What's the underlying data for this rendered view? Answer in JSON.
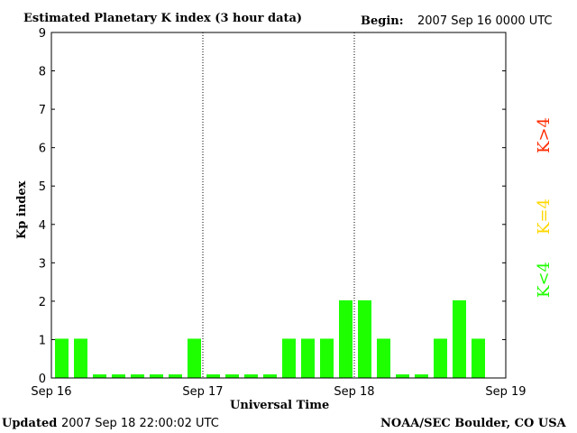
{
  "chart_data": {
    "type": "bar",
    "title": "Estimated Planetary K index (3 hour data)",
    "begin_label": "Begin:",
    "begin_value": "2007 Sep 16 0000 UTC",
    "xlabel": "Universal Time",
    "ylabel": "Kp index",
    "ylim": [
      0,
      9
    ],
    "yticks": [
      "0",
      "1",
      "2",
      "3",
      "4",
      "5",
      "6",
      "7",
      "8",
      "9"
    ],
    "xticks": [
      "Sep 16",
      "Sep 17",
      "Sep 18",
      "Sep 19"
    ],
    "bin_hours": 3,
    "values": [
      1,
      1,
      0,
      0,
      0,
      0,
      0,
      1,
      0,
      0,
      0,
      0,
      1,
      1,
      1,
      2,
      2,
      1,
      0,
      0,
      1,
      2,
      1,
      null
    ],
    "legend": [
      {
        "label": "K<4",
        "color": "#1eff00"
      },
      {
        "label": "K=4",
        "color": "#ffd700"
      },
      {
        "label": "K>4",
        "color": "#ff2a00"
      }
    ],
    "bar_color": "#1eff00"
  },
  "footer": {
    "updated_label": "Updated",
    "updated_value": "2007 Sep 18 22:00:02 UTC",
    "source": "NOAA/SEC Boulder, CO USA"
  }
}
